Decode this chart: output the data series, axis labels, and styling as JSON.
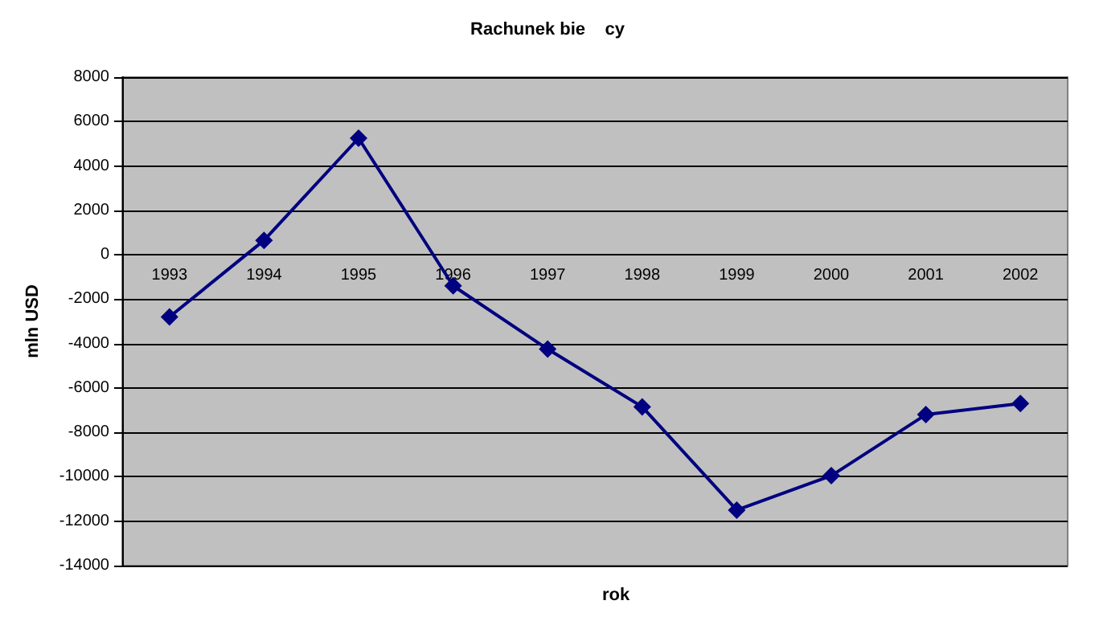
{
  "chart_data": {
    "type": "line",
    "title": "Rachunek bie    cy",
    "xlabel": "rok",
    "ylabel": "mln USD",
    "categories": [
      "1993",
      "1994",
      "1995",
      "1996",
      "1997",
      "1998",
      "1999",
      "2000",
      "2001",
      "2002"
    ],
    "series": [
      {
        "color": "#000080",
        "values": [
          -2800,
          650,
          5250,
          -1400,
          -4250,
          -6850,
          -11500,
          -9950,
          -7200,
          -6700
        ]
      }
    ],
    "ylim": [
      -14000,
      8000
    ],
    "yticks": [
      -14000,
      -12000,
      -10000,
      -8000,
      -6000,
      -4000,
      -2000,
      0,
      2000,
      4000,
      6000,
      8000
    ],
    "grid": "y",
    "marker": "diamond",
    "line_style": "solid"
  }
}
